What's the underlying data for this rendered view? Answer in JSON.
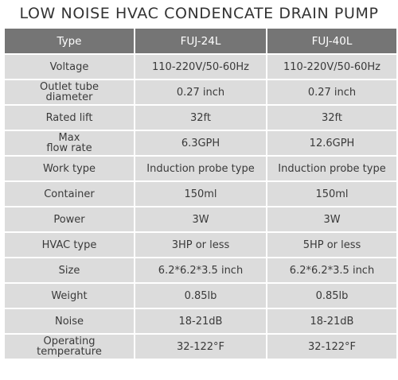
{
  "title": "LOW NOISE HVAC CONDENCATE DRAIN PUMP",
  "header": {
    "type": "Type",
    "model_a": "FUJ-24L",
    "model_b": "FUJ-40L"
  },
  "rows": [
    {
      "label": "Voltage",
      "a": "110-220V/50-60Hz",
      "b": "110-220V/50-60Hz"
    },
    {
      "label": "Outlet tube\ndiameter",
      "a": "0.27 inch",
      "b": "0.27 inch"
    },
    {
      "label": "Rated lift",
      "a": "32ft",
      "b": "32ft"
    },
    {
      "label": "Max\nflow rate",
      "a": "6.3GPH",
      "b": "12.6GPH"
    },
    {
      "label": "Work type",
      "a": "Induction probe type",
      "b": "Induction probe type"
    },
    {
      "label": "Container",
      "a": "150ml",
      "b": "150ml"
    },
    {
      "label": "Power",
      "a": "3W",
      "b": "3W"
    },
    {
      "label": "HVAC type",
      "a": "3HP or less",
      "b": "5HP or less"
    },
    {
      "label": "Size",
      "a": "6.2*6.2*3.5 inch",
      "b": "6.2*6.2*3.5 inch"
    },
    {
      "label": "Weight",
      "a": "0.85lb",
      "b": "0.85lb"
    },
    {
      "label": "Noise",
      "a": "18-21dB",
      "b": "18-21dB"
    },
    {
      "label": "Operating\ntemperature",
      "a": "32-122°F",
      "b": "32-122°F"
    }
  ],
  "colors": {
    "header_bg": "#757575",
    "cell_bg": "#dcdcdc",
    "text": "#3a3a3a"
  }
}
